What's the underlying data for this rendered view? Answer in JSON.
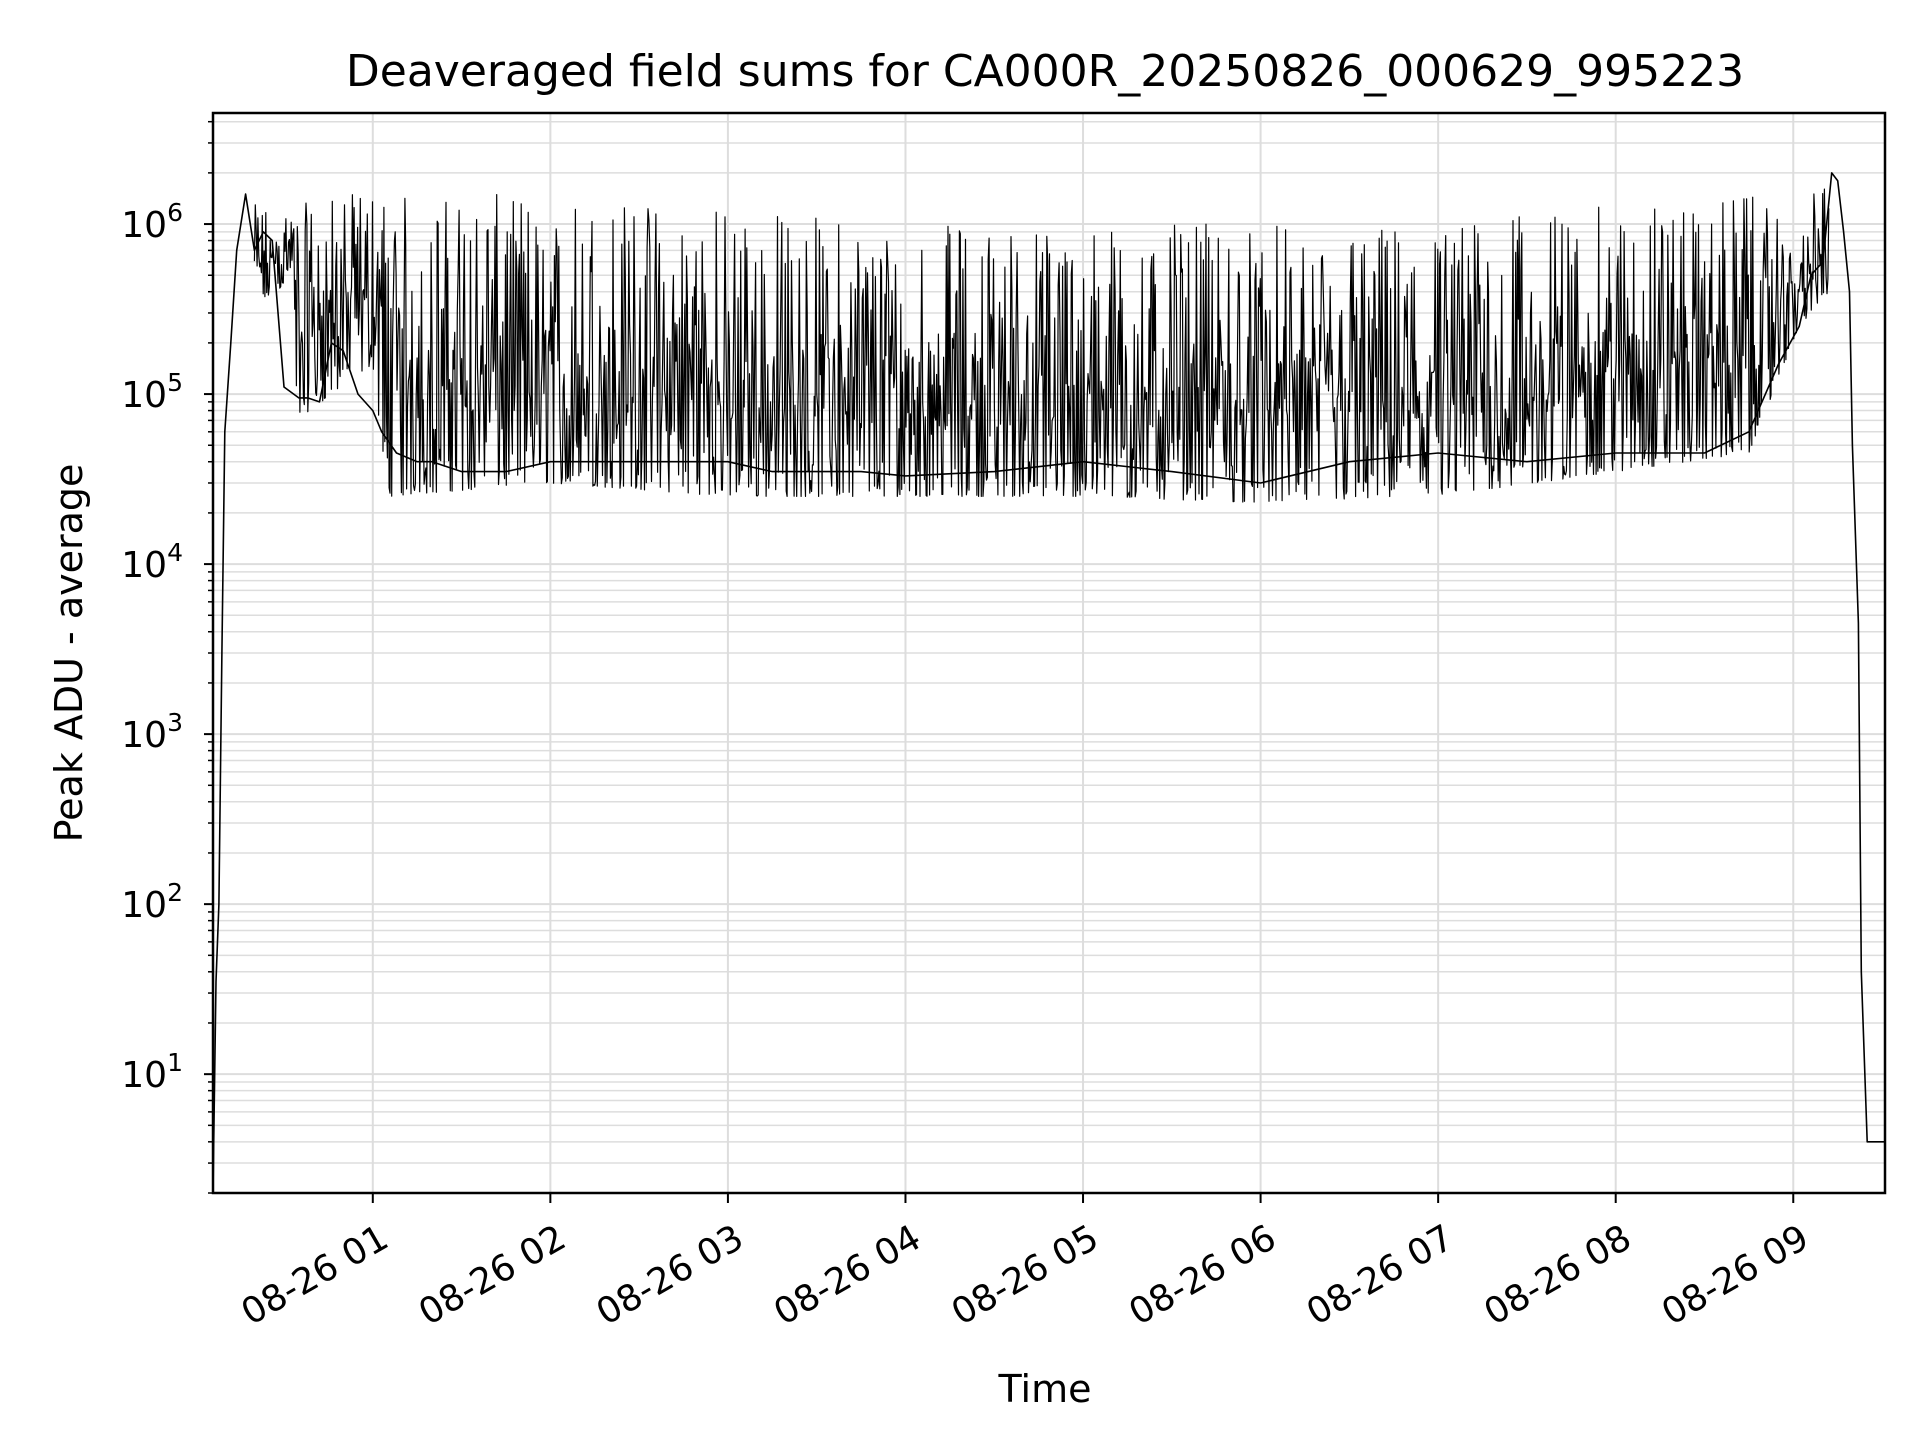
{
  "chart_data": {
    "type": "line",
    "title": "Deaveraged field sums for CA000R_20250826_000629_995223",
    "xlabel": "Time",
    "ylabel": "Peak ADU - average",
    "y_scale": "log",
    "ylim": [
      2,
      4500000
    ],
    "xlim": [
      "2025-08-26 00:06",
      "2025-08-26 09:31"
    ],
    "x_ticks": [
      {
        "t": "2025-08-26 01:00",
        "label": "08-26 01"
      },
      {
        "t": "2025-08-26 02:00",
        "label": "08-26 02"
      },
      {
        "t": "2025-08-26 03:00",
        "label": "08-26 03"
      },
      {
        "t": "2025-08-26 04:00",
        "label": "08-26 04"
      },
      {
        "t": "2025-08-26 05:00",
        "label": "08-26 05"
      },
      {
        "t": "2025-08-26 06:00",
        "label": "08-26 06"
      },
      {
        "t": "2025-08-26 07:00",
        "label": "08-26 07"
      },
      {
        "t": "2025-08-26 08:00",
        "label": "08-26 08"
      },
      {
        "t": "2025-08-26 09:00",
        "label": "08-26 09"
      }
    ],
    "y_ticks": [
      {
        "value": 10,
        "base": "10",
        "exp": "1"
      },
      {
        "value": 100,
        "base": "10",
        "exp": "2"
      },
      {
        "value": 1000,
        "base": "10",
        "exp": "3"
      },
      {
        "value": 10000,
        "base": "10",
        "exp": "4"
      },
      {
        "value": 100000,
        "base": "10",
        "exp": "5"
      },
      {
        "value": 1000000,
        "base": "10",
        "exp": "6"
      }
    ],
    "grid": true,
    "line_color": "#000000",
    "grid_color": "#dddddd",
    "series": [
      {
        "x": [
          "2025-08-26 00:06",
          "2025-08-26 00:07",
          "2025-08-26 00:08",
          "2025-08-26 00:09",
          "2025-08-26 00:10",
          "2025-08-26 00:12",
          "2025-08-26 00:14",
          "2025-08-26 00:17",
          "2025-08-26 00:20",
          "2025-08-26 00:23",
          "2025-08-26 00:26",
          "2025-08-26 00:30",
          "2025-08-26 00:35",
          "2025-08-26 00:38",
          "2025-08-26 00:42",
          "2025-08-26 00:46",
          "2025-08-26 00:50",
          "2025-08-26 00:55",
          "2025-08-26 01:00",
          "2025-08-26 01:03",
          "2025-08-26 01:08",
          "2025-08-26 01:15",
          "2025-08-26 01:20",
          "2025-08-26 01:30",
          "2025-08-26 01:45",
          "2025-08-26 02:00",
          "2025-08-26 02:15",
          "2025-08-26 02:30",
          "2025-08-26 02:45",
          "2025-08-26 03:00",
          "2025-08-26 03:15",
          "2025-08-26 03:30",
          "2025-08-26 03:45",
          "2025-08-26 04:00",
          "2025-08-26 04:30",
          "2025-08-26 05:00",
          "2025-08-26 05:30",
          "2025-08-26 06:00",
          "2025-08-26 06:30",
          "2025-08-26 07:00",
          "2025-08-26 07:30",
          "2025-08-26 08:00",
          "2025-08-26 08:30",
          "2025-08-26 08:45",
          "2025-08-26 08:55",
          "2025-08-26 09:02",
          "2025-08-26 09:06",
          "2025-08-26 09:10",
          "2025-08-26 09:13",
          "2025-08-26 09:15",
          "2025-08-26 09:17",
          "2025-08-26 09:19",
          "2025-08-26 09:20",
          "2025-08-26 09:22",
          "2025-08-26 09:23",
          "2025-08-26 09:25",
          "2025-08-26 09:31"
        ],
        "y": [
          2,
          35,
          100,
          3000,
          60000,
          200000,
          700000,
          1500000,
          700000,
          900000,
          800000,
          110000,
          95000,
          95000,
          90000,
          200000,
          180000,
          100000,
          80000,
          60000,
          45000,
          40000,
          40000,
          35000,
          35000,
          40000,
          40000,
          40000,
          40000,
          40000,
          35000,
          35000,
          35000,
          33000,
          35000,
          40000,
          35000,
          30000,
          40000,
          45000,
          40000,
          45000,
          45000,
          60000,
          150000,
          250000,
          500000,
          600000,
          2000000,
          1800000,
          900000,
          400000,
          50000,
          4500,
          40,
          4,
          4
        ]
      }
    ],
    "noise_band": {
      "x": [
        "2025-08-26 00:20",
        "2025-08-26 00:33",
        "2025-08-26 00:34",
        "2025-08-26 01:00",
        "2025-08-26 01:05",
        "2025-08-26 02:00",
        "2025-08-26 03:00",
        "2025-08-26 04:00",
        "2025-08-26 05:00",
        "2025-08-26 06:00",
        "2025-08-26 07:00",
        "2025-08-26 08:00",
        "2025-08-26 08:45",
        "2025-08-26 09:02",
        "2025-08-26 09:12"
      ],
      "lower": [
        300000,
        500000,
        70000,
        150000,
        25000,
        30000,
        25000,
        25000,
        25000,
        23000,
        25000,
        35000,
        45000,
        250000,
        400000
      ],
      "upper": [
        1300000,
        1400000,
        1300000,
        1600000,
        1500000,
        1500000,
        1300000,
        1000000,
        1000000,
        1000000,
        1000000,
        1300000,
        1500000,
        1000000,
        2300000
      ]
    }
  }
}
